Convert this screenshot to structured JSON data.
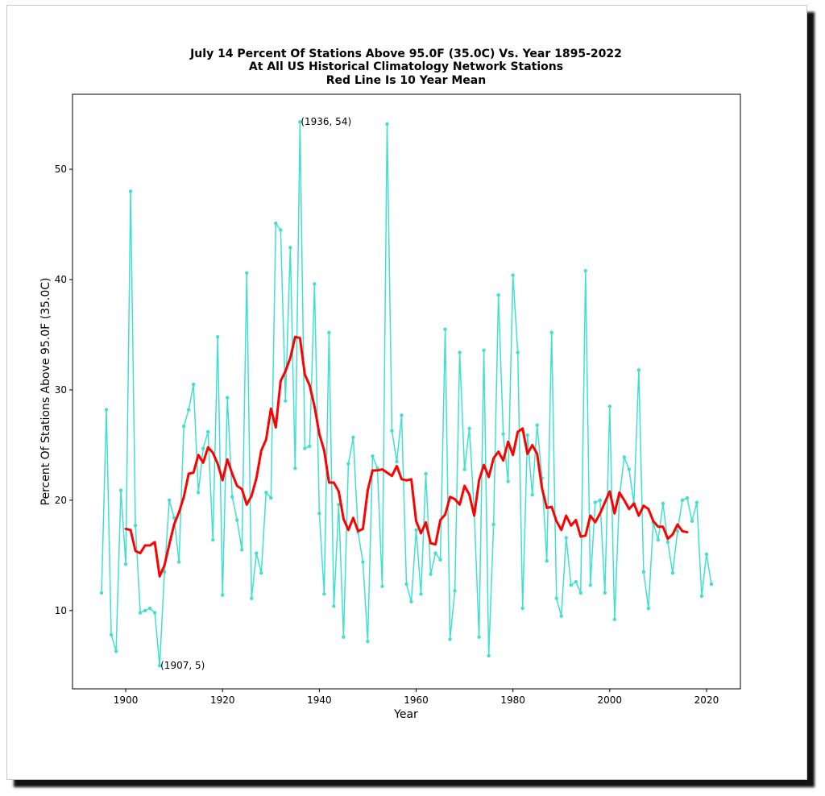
{
  "chart_data": {
    "type": "line",
    "title_lines": [
      "July 14 Percent Of Stations Above 95.0F (35.0C) Vs. Year 1895-2022",
      "At All US Historical Climatology Network Stations",
      "Red Line Is 10 Year Mean"
    ],
    "xlabel": "Year",
    "ylabel": "Percent Of Stations Above 95.0F (35.0C)",
    "xlim": [
      1889,
      2027
    ],
    "ylim": [
      2.9,
      56.8
    ],
    "xticks": [
      1900,
      1920,
      1940,
      1960,
      1980,
      2000,
      2020
    ],
    "yticks": [
      10,
      20,
      30,
      40,
      50
    ],
    "grid": false,
    "series": [
      {
        "color": "#40e0d0",
        "marker": "dot",
        "x": [
          1895,
          1896,
          1897,
          1898,
          1899,
          1900,
          1901,
          1902,
          1903,
          1904,
          1905,
          1906,
          1907,
          1908,
          1909,
          1910,
          1911,
          1912,
          1913,
          1914,
          1915,
          1916,
          1917,
          1918,
          1919,
          1920,
          1921,
          1922,
          1923,
          1924,
          1925,
          1926,
          1927,
          1928,
          1929,
          1930,
          1931,
          1932,
          1933,
          1934,
          1935,
          1936,
          1937,
          1938,
          1939,
          1940,
          1941,
          1942,
          1943,
          1944,
          1945,
          1946,
          1947,
          1948,
          1949,
          1950,
          1951,
          1952,
          1953,
          1954,
          1955,
          1956,
          1957,
          1958,
          1959,
          1960,
          1961,
          1962,
          1963,
          1964,
          1965,
          1966,
          1967,
          1968,
          1969,
          1970,
          1971,
          1972,
          1973,
          1974,
          1975,
          1976,
          1977,
          1978,
          1979,
          1980,
          1981,
          1982,
          1983,
          1984,
          1985,
          1986,
          1987,
          1988,
          1989,
          1990,
          1991,
          1992,
          1993,
          1994,
          1995,
          1996,
          1997,
          1998,
          1999,
          2000,
          2001,
          2002,
          2003,
          2004,
          2005,
          2006,
          2007,
          2008,
          2009,
          2010,
          2011,
          2012,
          2013,
          2014,
          2015,
          2016,
          2017,
          2018,
          2019,
          2020,
          2021
        ],
        "y": [
          11.6,
          28.2,
          7.8,
          6.3,
          20.9,
          14.2,
          48.0,
          17.7,
          9.8,
          10.0,
          10.2,
          9.8,
          5.0,
          13.5,
          20.0,
          18.4,
          14.4,
          26.7,
          28.2,
          30.5,
          20.7,
          24.7,
          26.2,
          16.4,
          34.8,
          11.4,
          29.3,
          20.3,
          18.2,
          15.5,
          40.6,
          11.1,
          15.2,
          13.4,
          20.7,
          20.2,
          45.1,
          44.5,
          29.0,
          42.9,
          22.9,
          54.3,
          24.7,
          24.9,
          39.6,
          18.8,
          11.5,
          35.2,
          10.4,
          19.6,
          7.6,
          23.3,
          25.7,
          17.1,
          14.4,
          7.2,
          24.0,
          22.9,
          12.2,
          54.1,
          26.3,
          23.5,
          27.7,
          12.4,
          10.8,
          17.3,
          11.5,
          22.4,
          13.3,
          15.2,
          14.6,
          35.5,
          7.4,
          11.8,
          33.4,
          22.8,
          26.5,
          19.0,
          7.6,
          33.6,
          5.9,
          17.8,
          38.6,
          26.0,
          21.7,
          40.4,
          33.4,
          10.2,
          25.9,
          20.5,
          26.8,
          22.0,
          14.5,
          35.2,
          11.1,
          9.5,
          16.6,
          12.3,
          12.6,
          11.6,
          40.8,
          12.3,
          19.8,
          20.0,
          11.6,
          28.5,
          9.2,
          20.3,
          23.9,
          22.8,
          19.7,
          31.8,
          13.5,
          10.2,
          18.0,
          16.4,
          19.7,
          16.2,
          13.4,
          17.2,
          20.0,
          20.2,
          18.1,
          19.8,
          11.3,
          15.1,
          12.4
        ]
      },
      {
        "color": "#ff0000",
        "marker": "none",
        "x": [
          1900,
          1901,
          1902,
          1903,
          1904,
          1905,
          1906,
          1907,
          1908,
          1909,
          1910,
          1911,
          1912,
          1913,
          1914,
          1915,
          1916,
          1917,
          1918,
          1919,
          1920,
          1921,
          1922,
          1923,
          1924,
          1925,
          1926,
          1927,
          1928,
          1929,
          1930,
          1931,
          1932,
          1933,
          1934,
          1935,
          1936,
          1937,
          1938,
          1939,
          1940,
          1941,
          1942,
          1943,
          1944,
          1945,
          1946,
          1947,
          1948,
          1949,
          1950,
          1951,
          1952,
          1953,
          1954,
          1955,
          1956,
          1957,
          1958,
          1959,
          1960,
          1961,
          1962,
          1963,
          1964,
          1965,
          1966,
          1967,
          1968,
          1969,
          1970,
          1971,
          1972,
          1973,
          1974,
          1975,
          1976,
          1977,
          1978,
          1979,
          1980,
          1981,
          1982,
          1983,
          1984,
          1985,
          1986,
          1987,
          1988,
          1989,
          1990,
          1991,
          1992,
          1993,
          1994,
          1995,
          1996,
          1997,
          1998,
          1999,
          2000,
          2001,
          2002,
          2003,
          2004,
          2005,
          2006,
          2007,
          2008,
          2009,
          2010,
          2011,
          2012,
          2013,
          2014,
          2015,
          2016
        ],
        "y": [
          17.4,
          17.3,
          15.4,
          15.2,
          15.9,
          15.9,
          16.2,
          13.1,
          14.1,
          16.0,
          17.8,
          18.9,
          20.3,
          22.4,
          22.5,
          24.1,
          23.4,
          24.8,
          24.3,
          23.3,
          21.8,
          23.7,
          22.4,
          21.3,
          21.0,
          19.6,
          20.4,
          22.0,
          24.5,
          25.5,
          28.3,
          26.6,
          30.8,
          31.7,
          32.9,
          34.8,
          34.7,
          31.4,
          30.4,
          28.5,
          26.0,
          24.5,
          21.6,
          21.6,
          20.8,
          18.3,
          17.3,
          18.4,
          17.2,
          17.4,
          20.9,
          22.7,
          22.7,
          22.8,
          22.5,
          22.2,
          23.1,
          21.9,
          21.8,
          21.9,
          18.1,
          17.0,
          18.0,
          16.1,
          16.0,
          18.2,
          18.7,
          20.3,
          20.1,
          19.6,
          21.3,
          20.5,
          18.6,
          21.8,
          23.2,
          22.1,
          23.8,
          24.4,
          23.6,
          25.3,
          24.1,
          26.2,
          26.5,
          24.2,
          25.0,
          24.2,
          21.1,
          19.3,
          19.4,
          18.1,
          17.3,
          18.6,
          17.7,
          18.2,
          16.7,
          16.8,
          18.6,
          18.0,
          18.8,
          19.8,
          20.8,
          18.8,
          20.7,
          20.0,
          19.2,
          19.7,
          18.6,
          19.5,
          19.2,
          18.1,
          17.6,
          17.6,
          16.5,
          16.9,
          17.8,
          17.2,
          17.1
        ]
      }
    ],
    "annotations": [
      {
        "text": "(1936, 54)",
        "x": 1936,
        "y": 54.3
      },
      {
        "text": "(1907, 5)",
        "x": 1907,
        "y": 5.0
      }
    ]
  }
}
